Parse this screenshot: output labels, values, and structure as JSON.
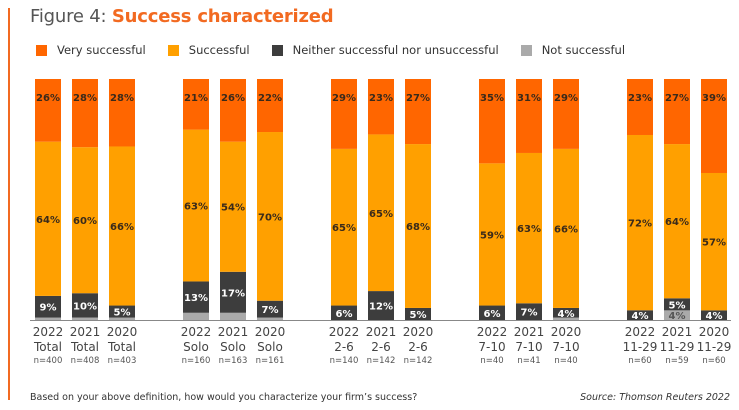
{
  "header": {
    "title_prefix": "Figure 4: ",
    "title_highlight": "Success characterized"
  },
  "footer": {
    "question": "Based on your above definition, how would you characterize your firm’s success?",
    "source": "Source: Thomson Reuters 2022"
  },
  "colors": {
    "accent": "#f26a21",
    "very_successful": "#ff6600",
    "successful": "#ffa000",
    "neither": "#3d3d3d",
    "not_successful": "#aaaaaa"
  },
  "chart_data": {
    "type": "bar",
    "stacked": true,
    "percent": true,
    "title": "Figure 4: Success characterized",
    "xlabel": "",
    "ylabel": "",
    "ylim": [
      0,
      100
    ],
    "grid": false,
    "legend_position": "top-left",
    "legend": [
      "Very successful",
      "Successful",
      "Neither successful nor unsuccessful",
      "Not successful"
    ],
    "groups": [
      {
        "name": "Total",
        "bars": [
          {
            "year": "2022",
            "segment": "Total",
            "n": "n=400",
            "values": [
              26,
              64,
              9,
              1
            ],
            "labels": [
              "26%",
              "64%",
              "9%",
              ""
            ]
          },
          {
            "year": "2021",
            "segment": "Total",
            "n": "n=408",
            "values": [
              28,
              60,
              10,
              1
            ],
            "labels": [
              "28%",
              "60%",
              "10%",
              ""
            ]
          },
          {
            "year": "2020",
            "segment": "Total",
            "n": "n=403",
            "values": [
              28,
              66,
              5,
              1
            ],
            "labels": [
              "28%",
              "66%",
              "5%",
              ""
            ]
          }
        ]
      },
      {
        "name": "Solo",
        "bars": [
          {
            "year": "2022",
            "segment": "Solo",
            "n": "n=160",
            "values": [
              21,
              63,
              13,
              3
            ],
            "labels": [
              "21%",
              "63%",
              "13%",
              ""
            ]
          },
          {
            "year": "2021",
            "segment": "Solo",
            "n": "n=163",
            "values": [
              26,
              54,
              17,
              3
            ],
            "labels": [
              "26%",
              "54%",
              "17%",
              ""
            ]
          },
          {
            "year": "2020",
            "segment": "Solo",
            "n": "n=161",
            "values": [
              22,
              70,
              7,
              1
            ],
            "labels": [
              "22%",
              "70%",
              "7%",
              ""
            ]
          }
        ]
      },
      {
        "name": "2-6",
        "bars": [
          {
            "year": "2022",
            "segment": "2-6",
            "n": "n=140",
            "values": [
              29,
              65,
              6,
              0
            ],
            "labels": [
              "29%",
              "65%",
              "6%",
              ""
            ]
          },
          {
            "year": "2021",
            "segment": "2-6",
            "n": "n=142",
            "values": [
              23,
              65,
              12,
              0
            ],
            "labels": [
              "23%",
              "65%",
              "12%",
              ""
            ]
          },
          {
            "year": "2020",
            "segment": "2-6",
            "n": "n=142",
            "values": [
              27,
              68,
              5,
              0
            ],
            "labels": [
              "27%",
              "68%",
              "5%",
              ""
            ]
          }
        ]
      },
      {
        "name": "7-10",
        "bars": [
          {
            "year": "2022",
            "segment": "7-10",
            "n": "n=40",
            "values": [
              35,
              59,
              6,
              0
            ],
            "labels": [
              "35%",
              "59%",
              "6%",
              ""
            ]
          },
          {
            "year": "2021",
            "segment": "7-10",
            "n": "n=41",
            "values": [
              31,
              63,
              7,
              0
            ],
            "labels": [
              "31%",
              "63%",
              "7%",
              ""
            ]
          },
          {
            "year": "2020",
            "segment": "7-10",
            "n": "n=40",
            "values": [
              29,
              66,
              4,
              1
            ],
            "labels": [
              "29%",
              "66%",
              "4%",
              ""
            ]
          }
        ]
      },
      {
        "name": "11-29",
        "bars": [
          {
            "year": "2022",
            "segment": "11-29",
            "n": "n=60",
            "values": [
              23,
              72,
              4,
              0
            ],
            "labels": [
              "23%",
              "72%",
              "4%",
              ""
            ]
          },
          {
            "year": "2021",
            "segment": "11-29",
            "n": "n=59",
            "values": [
              27,
              64,
              5,
              4
            ],
            "labels": [
              "27%",
              "64%",
              "5%",
              "4%"
            ]
          },
          {
            "year": "2020",
            "segment": "11-29",
            "n": "n=60",
            "values": [
              39,
              57,
              4,
              0
            ],
            "labels": [
              "39%",
              "57%",
              "4%",
              ""
            ]
          }
        ]
      }
    ]
  }
}
